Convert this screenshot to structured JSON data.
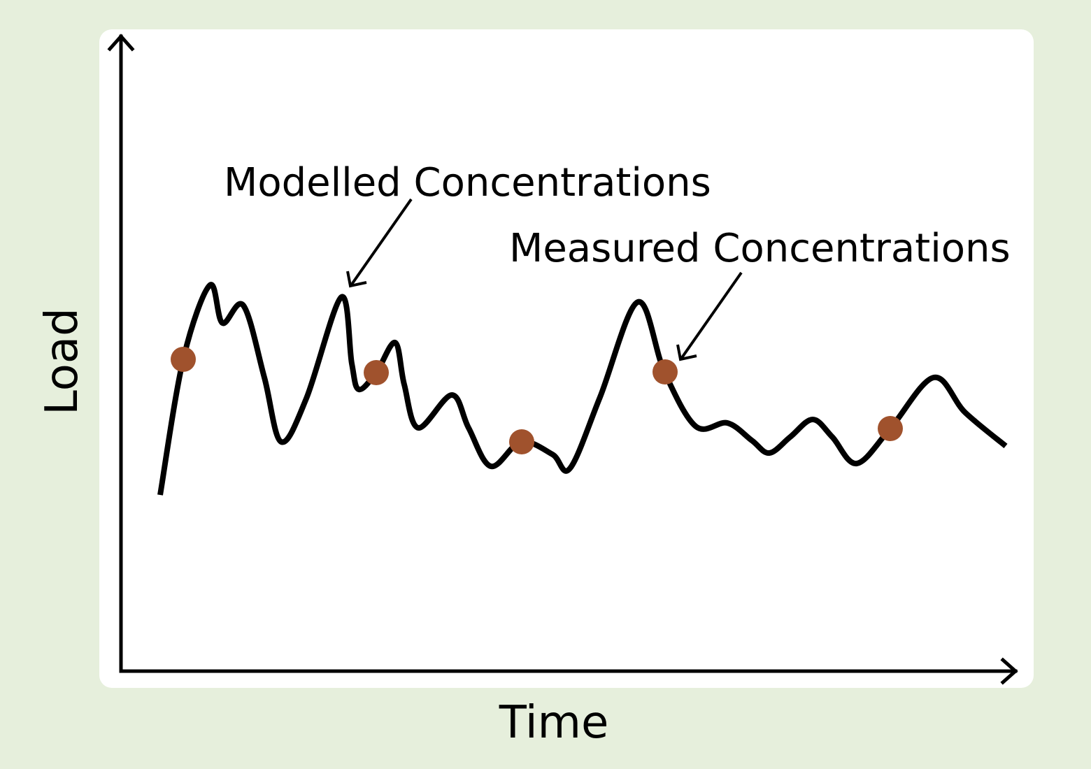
{
  "diagram": {
    "x_axis_label": "Time",
    "y_axis_label": "Load",
    "annotations": {
      "modelled": "Modelled Concentrations",
      "measured": "Measured Concentrations"
    },
    "colors": {
      "background": "#e6efdc",
      "panel": "#ffffff",
      "curve": "#000000",
      "measured_points": "#a0522d"
    }
  }
}
